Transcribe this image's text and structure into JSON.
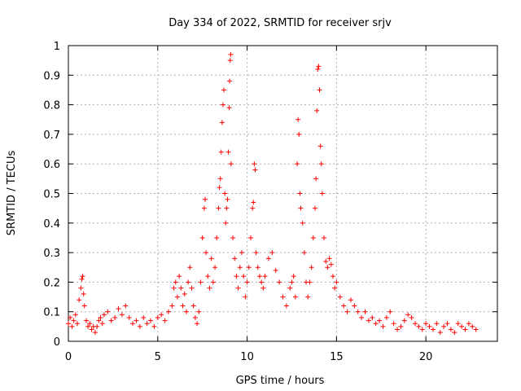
{
  "chart_data": {
    "type": "scatter",
    "title": "Day 334 of 2022, SRMTID for receiver srjv",
    "xlabel": "GPS time / hours",
    "ylabel": "SRMTID / TECUs",
    "xlim": [
      0,
      24
    ],
    "ylim": [
      0,
      1
    ],
    "xticks": [
      0,
      5,
      10,
      15,
      20
    ],
    "yticks": [
      0,
      0.1,
      0.2,
      0.3,
      0.4,
      0.5,
      0.6,
      0.7,
      0.8,
      0.9,
      1
    ],
    "grid": true,
    "marker": "+",
    "color": "#ff0000",
    "series": [
      {
        "name": "srjv",
        "points": [
          [
            0.0,
            0.06
          ],
          [
            0.1,
            0.08
          ],
          [
            0.2,
            0.05
          ],
          [
            0.3,
            0.07
          ],
          [
            0.4,
            0.09
          ],
          [
            0.5,
            0.06
          ],
          [
            0.6,
            0.14
          ],
          [
            0.7,
            0.18
          ],
          [
            0.75,
            0.21
          ],
          [
            0.8,
            0.22
          ],
          [
            0.85,
            0.16
          ],
          [
            0.9,
            0.12
          ],
          [
            1.0,
            0.07
          ],
          [
            1.1,
            0.05
          ],
          [
            1.2,
            0.06
          ],
          [
            1.3,
            0.04
          ],
          [
            1.4,
            0.05
          ],
          [
            1.5,
            0.03
          ],
          [
            1.6,
            0.05
          ],
          [
            1.7,
            0.07
          ],
          [
            1.8,
            0.08
          ],
          [
            1.9,
            0.06
          ],
          [
            2.0,
            0.09
          ],
          [
            2.2,
            0.1
          ],
          [
            2.4,
            0.07
          ],
          [
            2.6,
            0.08
          ],
          [
            2.8,
            0.11
          ],
          [
            3.0,
            0.09
          ],
          [
            3.2,
            0.12
          ],
          [
            3.4,
            0.08
          ],
          [
            3.6,
            0.06
          ],
          [
            3.8,
            0.07
          ],
          [
            4.0,
            0.05
          ],
          [
            4.2,
            0.08
          ],
          [
            4.4,
            0.06
          ],
          [
            4.6,
            0.07
          ],
          [
            4.8,
            0.05
          ],
          [
            5.0,
            0.08
          ],
          [
            5.2,
            0.09
          ],
          [
            5.4,
            0.07
          ],
          [
            5.6,
            0.1
          ],
          [
            5.8,
            0.12
          ],
          [
            5.9,
            0.18
          ],
          [
            6.0,
            0.2
          ],
          [
            6.1,
            0.15
          ],
          [
            6.2,
            0.22
          ],
          [
            6.3,
            0.18
          ],
          [
            6.4,
            0.12
          ],
          [
            6.5,
            0.16
          ],
          [
            6.6,
            0.1
          ],
          [
            6.7,
            0.2
          ],
          [
            6.8,
            0.25
          ],
          [
            6.9,
            0.18
          ],
          [
            7.0,
            0.12
          ],
          [
            7.1,
            0.08
          ],
          [
            7.2,
            0.06
          ],
          [
            7.3,
            0.1
          ],
          [
            7.4,
            0.2
          ],
          [
            7.5,
            0.35
          ],
          [
            7.6,
            0.45
          ],
          [
            7.65,
            0.48
          ],
          [
            7.7,
            0.3
          ],
          [
            7.8,
            0.22
          ],
          [
            7.9,
            0.18
          ],
          [
            8.0,
            0.28
          ],
          [
            8.1,
            0.2
          ],
          [
            8.2,
            0.25
          ],
          [
            8.3,
            0.35
          ],
          [
            8.4,
            0.45
          ],
          [
            8.45,
            0.52
          ],
          [
            8.5,
            0.55
          ],
          [
            8.55,
            0.64
          ],
          [
            8.6,
            0.74
          ],
          [
            8.65,
            0.8
          ],
          [
            8.7,
            0.85
          ],
          [
            8.75,
            0.5
          ],
          [
            8.8,
            0.4
          ],
          [
            8.85,
            0.45
          ],
          [
            8.9,
            0.48
          ],
          [
            8.95,
            0.64
          ],
          [
            9.0,
            0.79
          ],
          [
            9.02,
            0.88
          ],
          [
            9.05,
            0.95
          ],
          [
            9.08,
            0.97
          ],
          [
            9.1,
            0.6
          ],
          [
            9.2,
            0.35
          ],
          [
            9.3,
            0.28
          ],
          [
            9.4,
            0.22
          ],
          [
            9.5,
            0.18
          ],
          [
            9.6,
            0.25
          ],
          [
            9.7,
            0.3
          ],
          [
            9.8,
            0.22
          ],
          [
            9.9,
            0.15
          ],
          [
            10.0,
            0.2
          ],
          [
            10.1,
            0.25
          ],
          [
            10.2,
            0.35
          ],
          [
            10.3,
            0.45
          ],
          [
            10.35,
            0.47
          ],
          [
            10.4,
            0.6
          ],
          [
            10.45,
            0.58
          ],
          [
            10.5,
            0.3
          ],
          [
            10.6,
            0.25
          ],
          [
            10.7,
            0.22
          ],
          [
            10.8,
            0.2
          ],
          [
            10.9,
            0.18
          ],
          [
            11.0,
            0.22
          ],
          [
            11.2,
            0.28
          ],
          [
            11.4,
            0.3
          ],
          [
            11.6,
            0.24
          ],
          [
            11.8,
            0.2
          ],
          [
            12.0,
            0.15
          ],
          [
            12.2,
            0.12
          ],
          [
            12.4,
            0.18
          ],
          [
            12.5,
            0.2
          ],
          [
            12.6,
            0.22
          ],
          [
            12.7,
            0.15
          ],
          [
            12.8,
            0.6
          ],
          [
            12.85,
            0.75
          ],
          [
            12.9,
            0.7
          ],
          [
            12.95,
            0.5
          ],
          [
            13.0,
            0.45
          ],
          [
            13.1,
            0.4
          ],
          [
            13.2,
            0.3
          ],
          [
            13.3,
            0.2
          ],
          [
            13.4,
            0.15
          ],
          [
            13.5,
            0.2
          ],
          [
            13.6,
            0.25
          ],
          [
            13.7,
            0.35
          ],
          [
            13.8,
            0.45
          ],
          [
            13.85,
            0.55
          ],
          [
            13.9,
            0.78
          ],
          [
            13.95,
            0.92
          ],
          [
            14.0,
            0.93
          ],
          [
            14.05,
            0.85
          ],
          [
            14.1,
            0.66
          ],
          [
            14.15,
            0.6
          ],
          [
            14.2,
            0.5
          ],
          [
            14.3,
            0.35
          ],
          [
            14.4,
            0.27
          ],
          [
            14.5,
            0.25
          ],
          [
            14.6,
            0.28
          ],
          [
            14.7,
            0.26
          ],
          [
            14.8,
            0.22
          ],
          [
            14.9,
            0.18
          ],
          [
            15.0,
            0.2
          ],
          [
            15.2,
            0.15
          ],
          [
            15.4,
            0.12
          ],
          [
            15.6,
            0.1
          ],
          [
            15.8,
            0.14
          ],
          [
            16.0,
            0.12
          ],
          [
            16.2,
            0.1
          ],
          [
            16.4,
            0.08
          ],
          [
            16.6,
            0.1
          ],
          [
            16.8,
            0.07
          ],
          [
            17.0,
            0.08
          ],
          [
            17.2,
            0.06
          ],
          [
            17.4,
            0.07
          ],
          [
            17.6,
            0.05
          ],
          [
            17.8,
            0.08
          ],
          [
            18.0,
            0.1
          ],
          [
            18.2,
            0.06
          ],
          [
            18.4,
            0.04
          ],
          [
            18.6,
            0.05
          ],
          [
            18.8,
            0.07
          ],
          [
            19.0,
            0.09
          ],
          [
            19.2,
            0.08
          ],
          [
            19.4,
            0.06
          ],
          [
            19.6,
            0.05
          ],
          [
            19.8,
            0.04
          ],
          [
            20.0,
            0.06
          ],
          [
            20.2,
            0.05
          ],
          [
            20.4,
            0.04
          ],
          [
            20.6,
            0.06
          ],
          [
            20.8,
            0.03
          ],
          [
            21.0,
            0.05
          ],
          [
            21.2,
            0.06
          ],
          [
            21.4,
            0.04
          ],
          [
            21.6,
            0.03
          ],
          [
            21.8,
            0.06
          ],
          [
            22.0,
            0.05
          ],
          [
            22.2,
            0.04
          ],
          [
            22.4,
            0.06
          ],
          [
            22.6,
            0.05
          ],
          [
            22.8,
            0.04
          ]
        ]
      }
    ]
  }
}
